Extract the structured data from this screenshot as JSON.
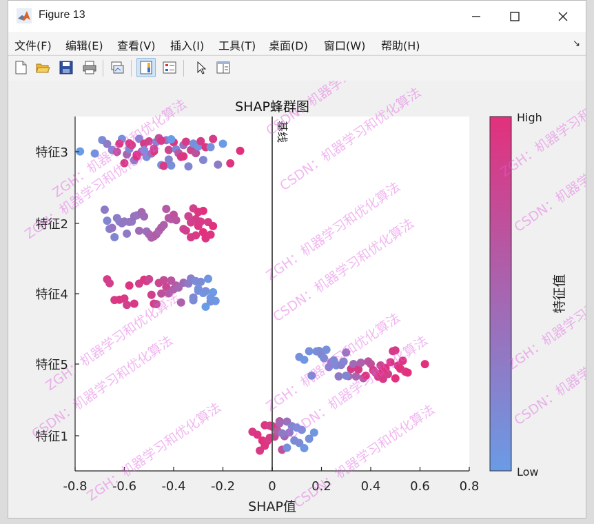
{
  "window": {
    "title": "Figure 13"
  },
  "menu": {
    "items": [
      "文件(F)",
      "编辑(E)",
      "查看(V)",
      "插入(I)",
      "工具(T)",
      "桌面(D)",
      "窗口(W)",
      "帮助(H)"
    ]
  },
  "toolbar": {
    "buttons": [
      "new-figure",
      "open-file",
      "save-figure",
      "print-figure",
      "link-plot",
      "colormap-editor",
      "insert-legend",
      "select-arrow",
      "property-inspector"
    ]
  },
  "chart_data": {
    "type": "scatter",
    "title": "SHAP蜂群图",
    "xlabel": "SHAP值",
    "xlim": [
      -0.8,
      0.8
    ],
    "xticks": [
      "-0.8",
      "-0.6",
      "-0.4",
      "-0.2",
      "0",
      "0.2",
      "0.4",
      "0.6",
      "0.8"
    ],
    "categories": [
      "特征3",
      "特征2",
      "特征4",
      "特征5",
      "特征1"
    ],
    "baseline_label": "基线",
    "baseline_x": 0,
    "colorbar": {
      "label": "特征值",
      "high_label": "High",
      "low_label": "Low",
      "high_color": "#e3307c",
      "low_color": "#6a9be6"
    },
    "series": [
      {
        "feature": "特征3",
        "x": [
          -0.78,
          -0.72,
          -0.69,
          -0.67,
          -0.65,
          -0.63,
          -0.61,
          -0.6,
          -0.59,
          -0.58,
          -0.57,
          -0.56,
          -0.55,
          -0.54,
          -0.53,
          -0.52,
          -0.51,
          -0.5,
          -0.49,
          -0.48,
          -0.47,
          -0.46,
          -0.45,
          -0.44,
          -0.43,
          -0.42,
          -0.41,
          -0.4,
          -0.39,
          -0.38,
          -0.37,
          -0.36,
          -0.35,
          -0.34,
          -0.33,
          -0.32,
          -0.31,
          -0.3,
          -0.29,
          -0.28,
          -0.27,
          -0.25,
          -0.24,
          -0.22,
          -0.2,
          -0.17,
          -0.13,
          -0.62,
          -0.55,
          -0.48,
          -0.42,
          -0.36,
          -0.45,
          -0.58,
          -0.52,
          -0.41
        ],
        "v": [
          0.0,
          0.1,
          0.15,
          0.3,
          0.2,
          0.7,
          0.1,
          0.9,
          0.5,
          0.2,
          0.8,
          0.3,
          0.95,
          0.2,
          0.6,
          0.9,
          0.1,
          0.85,
          0.4,
          0.95,
          0.2,
          0.7,
          0.1,
          0.9,
          0.3,
          0.8,
          0.1,
          0.95,
          0.2,
          0.6,
          0.9,
          0.4,
          0.9,
          0.2,
          0.8,
          0.1,
          0.7,
          0.05,
          0.9,
          0.2,
          0.95,
          0.1,
          0.9,
          0.3,
          0.0,
          0.95,
          1.0,
          0.9,
          1.0,
          0.8,
          0.2,
          0.95,
          0.9,
          0.95,
          0.1,
          0.0
        ]
      },
      {
        "feature": "特征2",
        "x": [
          -0.68,
          -0.67,
          -0.66,
          -0.65,
          -0.64,
          -0.63,
          -0.62,
          -0.61,
          -0.6,
          -0.59,
          -0.58,
          -0.57,
          -0.56,
          -0.55,
          -0.54,
          -0.53,
          -0.52,
          -0.51,
          -0.5,
          -0.49,
          -0.48,
          -0.47,
          -0.46,
          -0.45,
          -0.44,
          -0.43,
          -0.42,
          -0.41,
          -0.4,
          -0.39,
          -0.36,
          -0.35,
          -0.34,
          -0.33,
          -0.32,
          -0.31,
          -0.3,
          -0.29,
          -0.28,
          -0.27,
          -0.26,
          -0.25,
          -0.24,
          -0.33,
          -0.3,
          -0.28,
          -0.31,
          -0.34
        ],
        "v": [
          0.3,
          0.2,
          0.25,
          0.35,
          0.2,
          0.3,
          0.25,
          0.3,
          0.35,
          0.3,
          0.3,
          0.35,
          0.4,
          0.35,
          0.45,
          0.5,
          0.45,
          0.4,
          0.5,
          0.55,
          0.55,
          0.6,
          0.5,
          0.6,
          0.55,
          0.6,
          0.65,
          0.6,
          0.7,
          0.65,
          0.8,
          0.85,
          0.8,
          0.9,
          0.85,
          0.9,
          0.95,
          0.9,
          1.0,
          0.95,
          0.9,
          0.95,
          1.0,
          0.85,
          0.95,
          1.0,
          0.9,
          0.8
        ]
      },
      {
        "feature": "特征4",
        "x": [
          -0.67,
          -0.66,
          -0.64,
          -0.62,
          -0.6,
          -0.59,
          -0.58,
          -0.56,
          -0.54,
          -0.52,
          -0.51,
          -0.5,
          -0.49,
          -0.48,
          -0.47,
          -0.46,
          -0.45,
          -0.44,
          -0.43,
          -0.42,
          -0.41,
          -0.4,
          -0.39,
          -0.38,
          -0.37,
          -0.36,
          -0.34,
          -0.33,
          -0.32,
          -0.31,
          -0.3,
          -0.29,
          -0.28,
          -0.27,
          -0.26,
          -0.25,
          -0.24,
          -0.23,
          -0.3,
          -0.27,
          -0.32,
          -0.25
        ],
        "v": [
          0.9,
          0.85,
          0.9,
          0.95,
          0.9,
          0.85,
          0.95,
          0.9,
          0.85,
          0.95,
          0.9,
          0.8,
          0.85,
          0.9,
          0.75,
          0.8,
          0.7,
          0.75,
          0.8,
          0.6,
          0.65,
          0.55,
          0.6,
          0.5,
          0.55,
          0.45,
          0.3,
          0.25,
          0.2,
          0.15,
          0.1,
          0.15,
          0.05,
          0.1,
          0.05,
          0.1,
          0.0,
          0.05,
          0.1,
          0.0,
          0.15,
          0.05
        ]
      },
      {
        "feature": "特征5",
        "x": [
          0.11,
          0.13,
          0.15,
          0.16,
          0.18,
          0.19,
          0.2,
          0.21,
          0.22,
          0.23,
          0.24,
          0.25,
          0.26,
          0.27,
          0.28,
          0.29,
          0.3,
          0.31,
          0.32,
          0.33,
          0.34,
          0.35,
          0.36,
          0.37,
          0.38,
          0.39,
          0.4,
          0.41,
          0.42,
          0.43,
          0.44,
          0.45,
          0.46,
          0.47,
          0.48,
          0.49,
          0.5,
          0.51,
          0.52,
          0.53,
          0.54,
          0.55,
          0.62,
          0.25,
          0.3,
          0.45,
          0.5
        ],
        "v": [
          0.1,
          0.05,
          0.1,
          0.15,
          0.1,
          0.15,
          0.2,
          0.15,
          0.1,
          0.2,
          0.25,
          0.2,
          0.15,
          0.3,
          0.25,
          0.2,
          0.35,
          0.4,
          0.9,
          0.45,
          0.5,
          0.9,
          0.55,
          0.6,
          0.95,
          0.65,
          0.7,
          0.9,
          0.75,
          0.95,
          0.8,
          0.9,
          1.0,
          0.85,
          0.95,
          0.9,
          1.0,
          0.9,
          1.0,
          0.95,
          0.9,
          1.0,
          1.0,
          0.15,
          0.2,
          0.95,
          0.9
        ]
      },
      {
        "feature": "特征1",
        "x": [
          -0.08,
          -0.06,
          -0.05,
          -0.04,
          -0.03,
          -0.02,
          -0.01,
          0.0,
          0.01,
          0.02,
          0.03,
          0.04,
          0.05,
          0.06,
          0.07,
          0.08,
          0.09,
          0.1,
          0.11,
          0.12,
          0.13,
          0.15,
          0.17,
          -0.03,
          0.0,
          0.02,
          0.04,
          0.06,
          -0.01,
          0.03
        ],
        "v": [
          0.9,
          0.95,
          0.9,
          1.0,
          0.95,
          0.9,
          0.85,
          1.0,
          0.8,
          0.9,
          0.6,
          0.7,
          0.5,
          0.4,
          0.3,
          0.2,
          0.15,
          0.1,
          0.15,
          0.1,
          0.05,
          0.1,
          0.05,
          0.95,
          0.9,
          0.6,
          0.3,
          0.1,
          0.9,
          0.5
        ]
      }
    ],
    "watermarks": [
      "ZGH：机器学习和优化算法",
      "CSDN：机器学习和优化算法"
    ]
  }
}
